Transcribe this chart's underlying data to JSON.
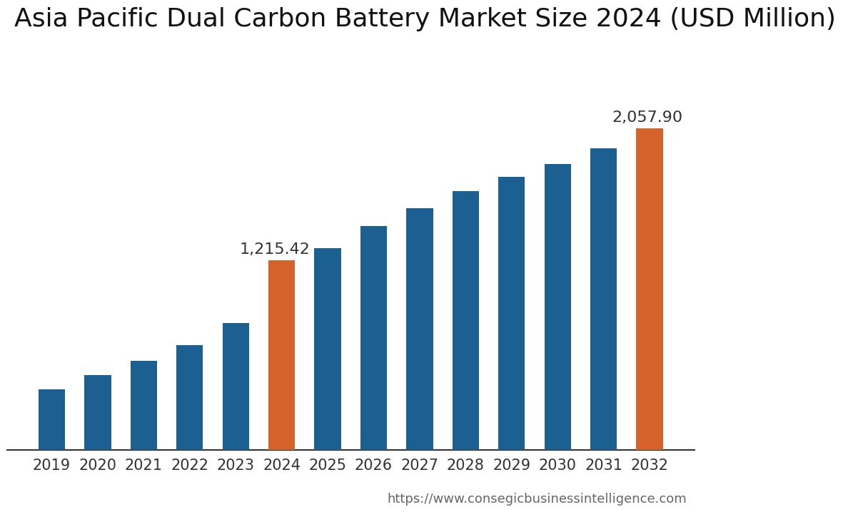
{
  "title": "Asia Pacific Dual Carbon Battery Market Size 2024 (USD Million)",
  "years": [
    2019,
    2020,
    2021,
    2022,
    2023,
    2024,
    2025,
    2026,
    2027,
    2028,
    2029,
    2030,
    2031,
    2032
  ],
  "values": [
    390,
    480,
    570,
    670,
    810,
    1215.42,
    1290,
    1430,
    1545,
    1655,
    1745,
    1830,
    1930,
    2057.9
  ],
  "colors": [
    "#1b6090",
    "#1b6090",
    "#1b6090",
    "#1b6090",
    "#1b6090",
    "#d4622a",
    "#1b6090",
    "#1b6090",
    "#1b6090",
    "#1b6090",
    "#1b6090",
    "#1b6090",
    "#1b6090",
    "#d4622a"
  ],
  "highlight_labels": {
    "2024": "1,215.42",
    "2032": "2,057.90"
  },
  "highlight_indices": [
    5,
    13
  ],
  "url": "https://www.consegicbusinessintelligence.com",
  "background_color": "#ffffff",
  "bar_width": 0.58,
  "ylim": [
    0,
    2450
  ],
  "title_fontsize": 26,
  "tick_fontsize": 15,
  "label_fontsize": 16,
  "url_fontsize": 13
}
